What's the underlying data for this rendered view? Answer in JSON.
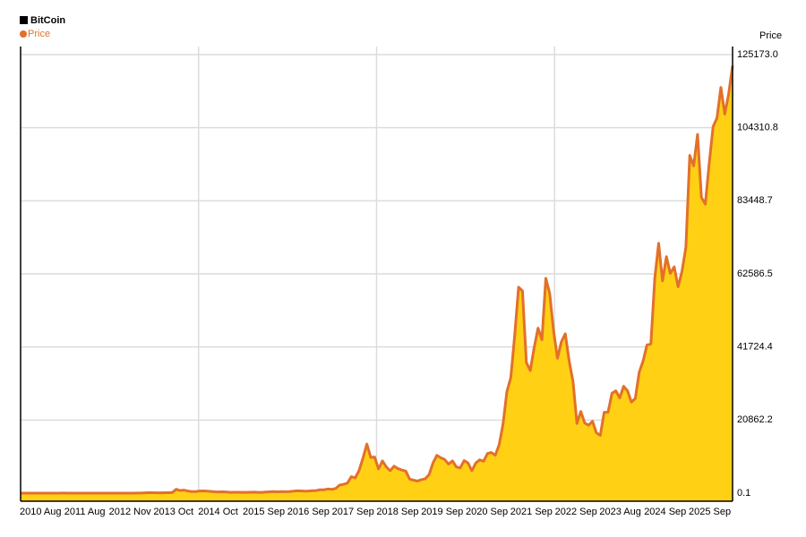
{
  "chart_data": {
    "type": "area",
    "title": "BitCoin",
    "ylabel": "Price",
    "x": [
      "2010-07",
      "2010-08",
      "2010-09",
      "2010-10",
      "2010-11",
      "2010-12",
      "2011-01",
      "2011-02",
      "2011-03",
      "2011-04",
      "2011-05",
      "2011-06",
      "2011-07",
      "2011-08",
      "2011-09",
      "2011-10",
      "2011-11",
      "2011-12",
      "2012-01",
      "2012-02",
      "2012-03",
      "2012-04",
      "2012-05",
      "2012-06",
      "2012-07",
      "2012-08",
      "2012-09",
      "2012-10",
      "2012-11",
      "2012-12",
      "2013-01",
      "2013-02",
      "2013-03",
      "2013-04",
      "2013-05",
      "2013-06",
      "2013-07",
      "2013-08",
      "2013-09",
      "2013-10",
      "2013-11",
      "2013-12",
      "2014-01",
      "2014-02",
      "2014-03",
      "2014-04",
      "2014-05",
      "2014-06",
      "2014-07",
      "2014-08",
      "2014-09",
      "2014-10",
      "2014-11",
      "2014-12",
      "2015-01",
      "2015-02",
      "2015-03",
      "2015-04",
      "2015-05",
      "2015-06",
      "2015-07",
      "2015-08",
      "2015-09",
      "2015-10",
      "2015-11",
      "2015-12",
      "2016-01",
      "2016-02",
      "2016-03",
      "2016-04",
      "2016-05",
      "2016-06",
      "2016-07",
      "2016-08",
      "2016-09",
      "2016-10",
      "2016-11",
      "2016-12",
      "2017-01",
      "2017-02",
      "2017-03",
      "2017-04",
      "2017-05",
      "2017-06",
      "2017-07",
      "2017-08",
      "2017-09",
      "2017-10",
      "2017-11",
      "2017-12",
      "2018-01",
      "2018-02",
      "2018-03",
      "2018-04",
      "2018-05",
      "2018-06",
      "2018-07",
      "2018-08",
      "2018-09",
      "2018-10",
      "2018-11",
      "2018-12",
      "2019-01",
      "2019-02",
      "2019-03",
      "2019-04",
      "2019-05",
      "2019-06",
      "2019-07",
      "2019-08",
      "2019-09",
      "2019-10",
      "2019-11",
      "2019-12",
      "2020-01",
      "2020-02",
      "2020-03",
      "2020-04",
      "2020-05",
      "2020-06",
      "2020-07",
      "2020-08",
      "2020-09",
      "2020-10",
      "2020-11",
      "2020-12",
      "2021-01",
      "2021-02",
      "2021-03",
      "2021-04",
      "2021-05",
      "2021-06",
      "2021-07",
      "2021-08",
      "2021-09",
      "2021-10",
      "2021-11",
      "2021-12",
      "2022-01",
      "2022-02",
      "2022-03",
      "2022-04",
      "2022-05",
      "2022-06",
      "2022-07",
      "2022-08",
      "2022-09",
      "2022-10",
      "2022-11",
      "2022-12",
      "2023-01",
      "2023-02",
      "2023-03",
      "2023-04",
      "2023-05",
      "2023-06",
      "2023-07",
      "2023-08",
      "2023-09",
      "2023-10",
      "2023-11",
      "2023-12",
      "2024-01",
      "2024-02",
      "2024-03",
      "2024-04",
      "2024-05",
      "2024-06",
      "2024-07",
      "2024-08",
      "2024-09",
      "2024-10",
      "2024-11",
      "2024-12",
      "2025-01",
      "2025-02",
      "2025-03",
      "2025-04",
      "2025-05",
      "2025-06",
      "2025-07",
      "2025-08",
      "2025-09",
      "2025-10"
    ],
    "series": [
      {
        "name": "Price",
        "color": "#e2702a",
        "fill": "#ffd014",
        "values": [
          0.07,
          0.06,
          0.06,
          0.2,
          0.28,
          0.3,
          0.5,
          0.9,
          0.8,
          3.5,
          8.7,
          16,
          13,
          8,
          5,
          3.2,
          3,
          4.7,
          5.5,
          4.9,
          4.9,
          5,
          5.2,
          6.7,
          9,
          10,
          12.4,
          11,
          12.5,
          13.5,
          20,
          33,
          93,
          140,
          129,
          97,
          106,
          129,
          133,
          200,
          1100,
          750,
          850,
          600,
          450,
          450,
          620,
          640,
          590,
          480,
          390,
          340,
          380,
          320,
          220,
          250,
          245,
          235,
          230,
          260,
          285,
          230,
          236,
          315,
          380,
          430,
          370,
          440,
          415,
          450,
          530,
          670,
          625,
          575,
          610,
          700,
          745,
          960,
          970,
          1190,
          1080,
          1350,
          2300,
          2500,
          2870,
          4700,
          4340,
          6450,
          10000,
          14000,
          10200,
          10300,
          6900,
          9200,
          7500,
          6400,
          7700,
          7000,
          6600,
          6300,
          4000,
          3700,
          3450,
          3850,
          4100,
          5300,
          8600,
          10800,
          10100,
          9600,
          8300,
          9200,
          7500,
          7200,
          9300,
          8600,
          6400,
          8600,
          9500,
          9100,
          11300,
          11600,
          10800,
          13800,
          19700,
          29000,
          33000,
          45000,
          58800,
          57700,
          37300,
          35000,
          41500,
          47100,
          43800,
          61300,
          57000,
          46300,
          38500,
          43200,
          45500,
          37700,
          31800,
          19900,
          23300,
          20000,
          19400,
          20500,
          17200,
          16500,
          23100,
          23100,
          28500,
          29200,
          27200,
          30500,
          29200,
          26000,
          27000,
          34500,
          37700,
          42300,
          42600,
          61200,
          71300,
          60600,
          67500,
          62700,
          64600,
          58900,
          63300,
          70200,
          96400,
          93400,
          102400,
          84400,
          82500,
          94200,
          104600,
          107100,
          115800,
          108200,
          114000,
          122000
        ]
      }
    ],
    "ylim": [
      -2300,
      127470
    ],
    "yticks": [
      0.1,
      20862.2,
      41724.4,
      62586.5,
      83448.7,
      104310.8,
      {
        "value": 125173.0,
        "label": "125173.0"
      }
    ],
    "xtick_labels": [
      "2010 Aug",
      "2011 Aug",
      "2012 Nov",
      "2013 Oct",
      "2014 Oct",
      "2015 Sep",
      "2016 Sep",
      "2017 Sep",
      "2018 Sep",
      "2019 Sep",
      "2020 Sep",
      "2021 Sep",
      "2022 Sep",
      "2023 Aug",
      "2024 Sep",
      "2025 Sep"
    ],
    "grid": true
  }
}
